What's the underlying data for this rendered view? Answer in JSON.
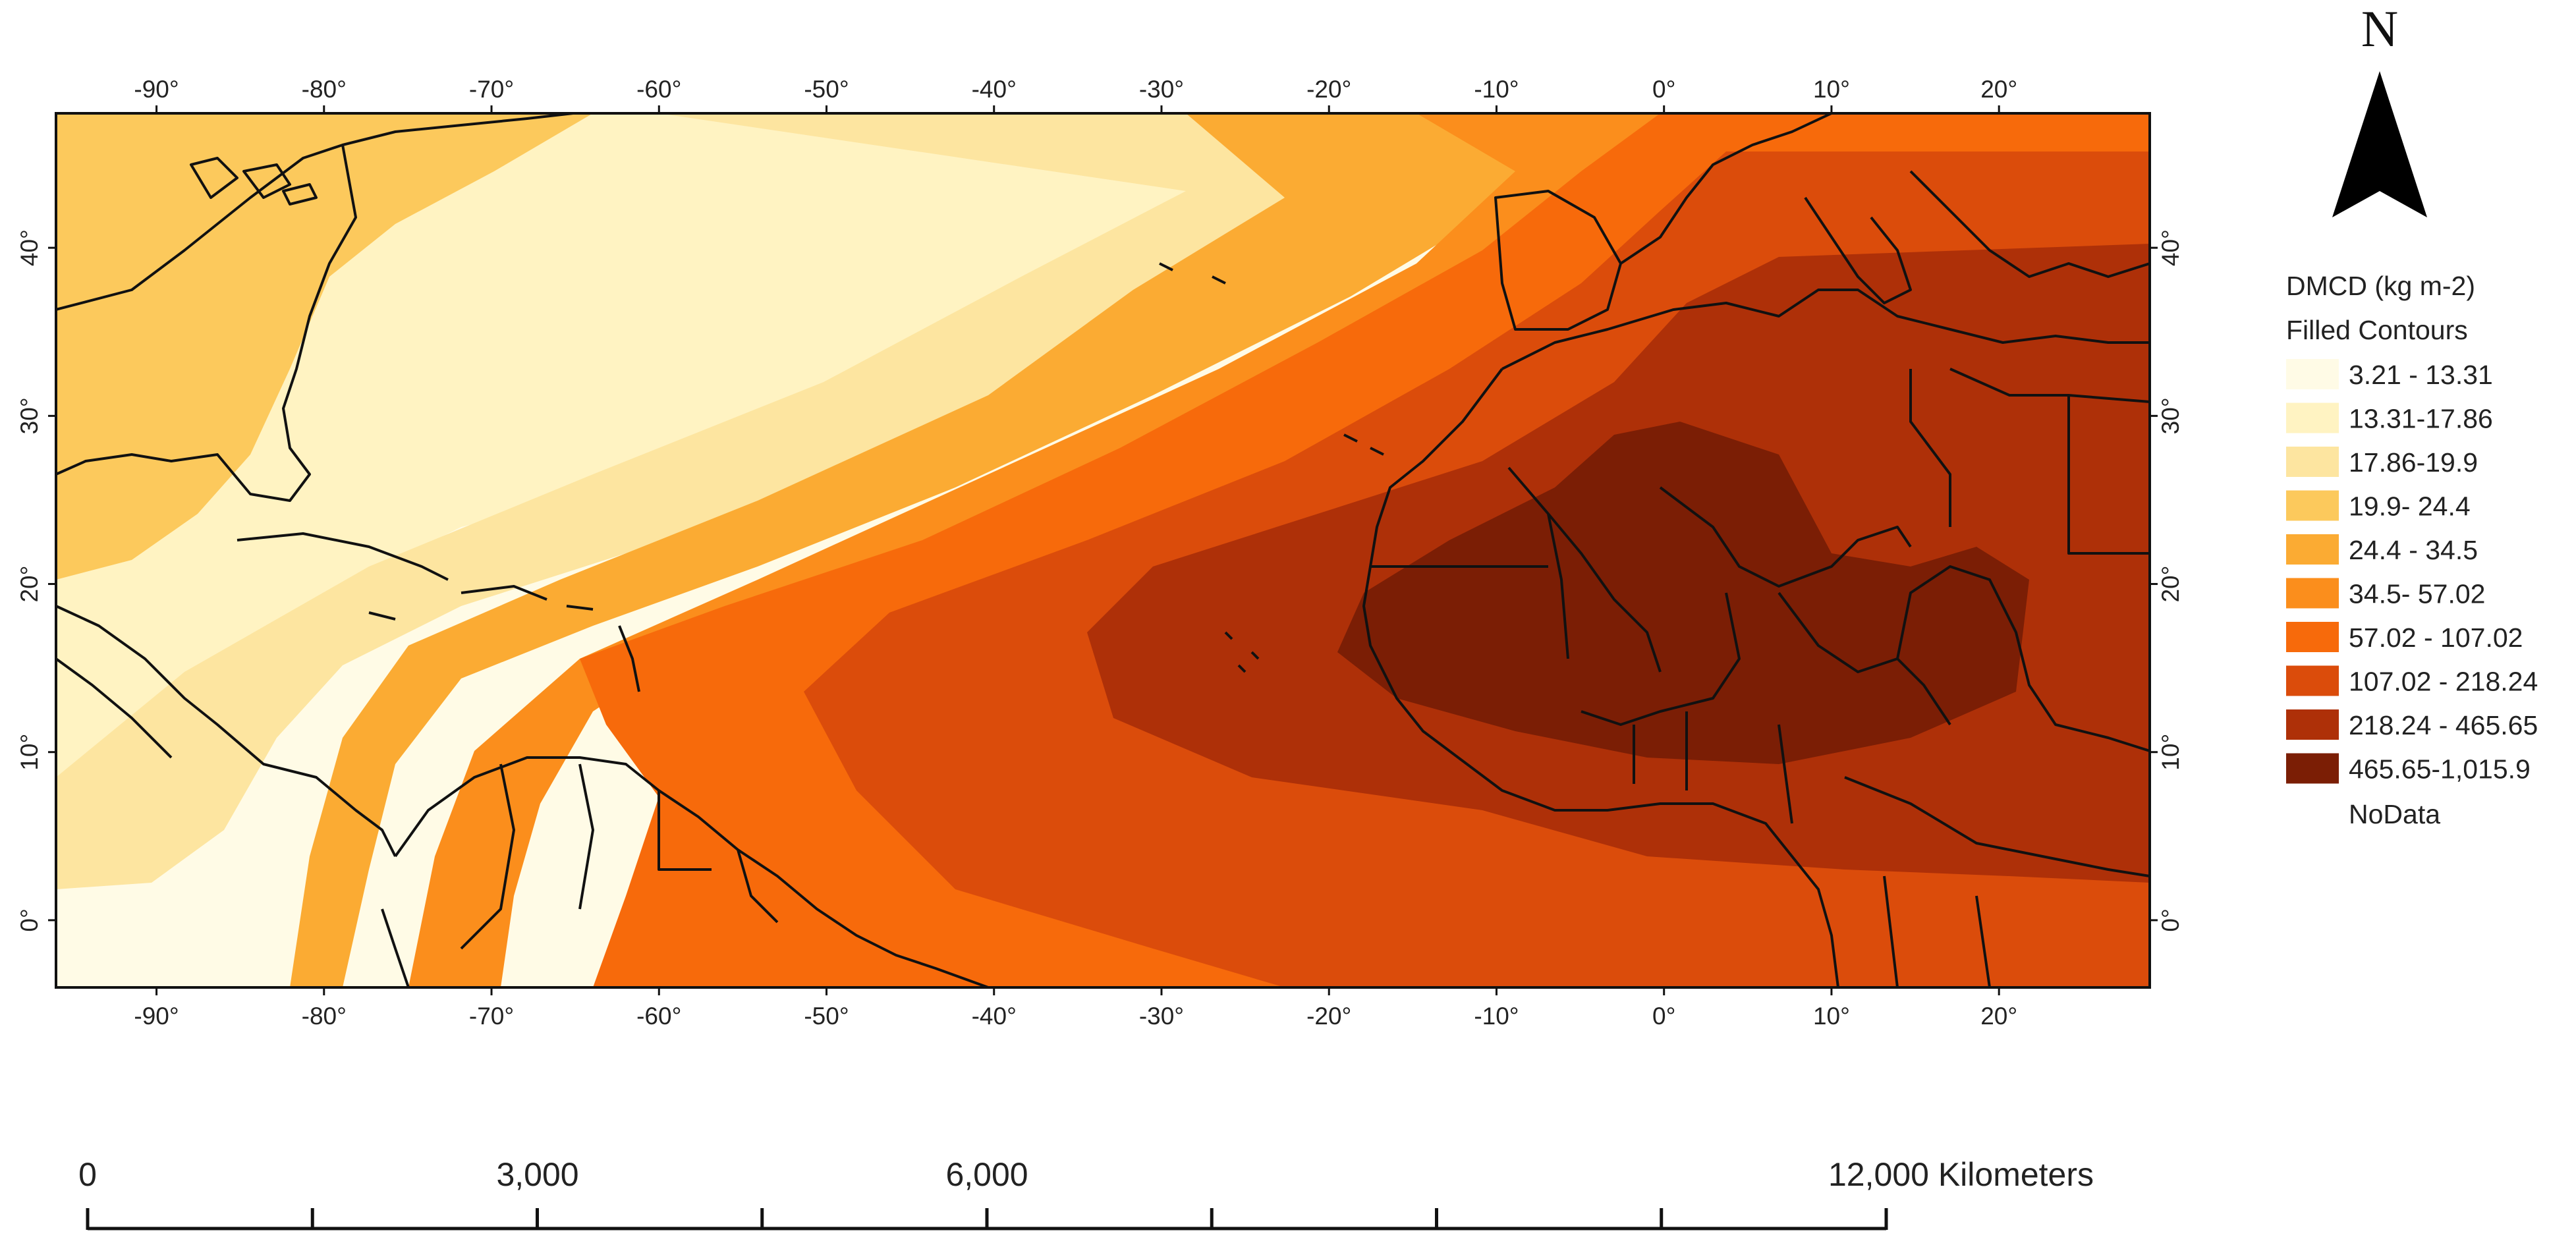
{
  "map": {
    "x_ticks": [
      "-90°",
      "-80°",
      "-70°",
      "-60°",
      "-50°",
      "-40°",
      "-30°",
      "-20°",
      "-10°",
      "0°",
      "10°",
      "20°"
    ],
    "y_ticks": [
      "40°",
      "30°",
      "20°",
      "10°",
      "0°"
    ],
    "x_tick_values": [
      -90,
      -80,
      -70,
      -60,
      -50,
      -40,
      -30,
      -20,
      -10,
      0,
      10,
      20
    ],
    "y_tick_values": [
      40,
      30,
      20,
      10,
      0
    ],
    "extent": {
      "lon": [
        -96,
        29
      ],
      "lat": [
        -4,
        48
      ]
    }
  },
  "legend": {
    "title": "DMCD (kg m-2)",
    "subtitle": "Filled Contours",
    "classes": [
      {
        "label": "3.21 - 13.31",
        "color": "#fffbe6"
      },
      {
        "label": "13.31-17.86",
        "color": "#fff3c2"
      },
      {
        "label": "17.86-19.9",
        "color": "#fde5a0"
      },
      {
        "label": "19.9- 24.4",
        "color": "#fcc95c"
      },
      {
        "label": "24.4 - 34.5",
        "color": "#fbab33"
      },
      {
        "label": "34.5- 57.02",
        "color": "#fb8e1c"
      },
      {
        "label": "57.02 - 107.02",
        "color": "#f76a0b"
      },
      {
        "label": "107.02 - 218.24",
        "color": "#db4c0b"
      },
      {
        "label": "218.24 - 465.65",
        "color": "#ae3008"
      },
      {
        "label": "465.65-1,015.9",
        "color": "#7b1e05"
      }
    ],
    "nodata_label": "NoData"
  },
  "north_arrow": {
    "label": "N",
    "icon": "north-arrow-icon"
  },
  "scale_bar": {
    "labels": [
      "0",
      "3,000",
      "6,000",
      "12,000 Kilometers"
    ],
    "values_km": [
      0,
      3000,
      6000,
      12000
    ]
  }
}
